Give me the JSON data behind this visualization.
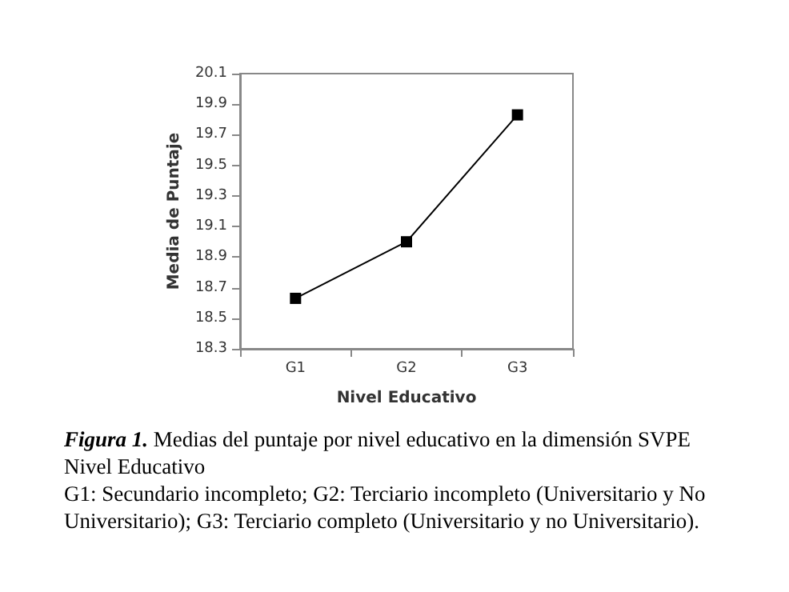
{
  "chart_data": {
    "type": "line",
    "title": "Figura 1.",
    "annotations": [
      "Medias del puntaje por nivel educativo en la dimensión SVPE",
      "Nivel Educativo",
      "G1: Secundario incompleto; G2: Terciario incompleto (Universitario y No Universitario); G3: Terciario completo (Universitario y no Universitario)."
    ],
    "xlabel": "Nivel Educativo",
    "ylabel": "Media de Puntaje",
    "categories": [
      "G1",
      "G2",
      "G3"
    ],
    "series": [
      {
        "color": "#000000",
        "values": [
          18.63,
          19.0,
          19.83
        ]
      }
    ],
    "ylim": [
      18.3,
      20.1
    ],
    "yticks": [
      18.3,
      18.5,
      18.7,
      18.9,
      19.1,
      19.3,
      19.5,
      19.7,
      19.9,
      20.1
    ],
    "grid": false,
    "marker": "square",
    "line_style": "solid"
  }
}
